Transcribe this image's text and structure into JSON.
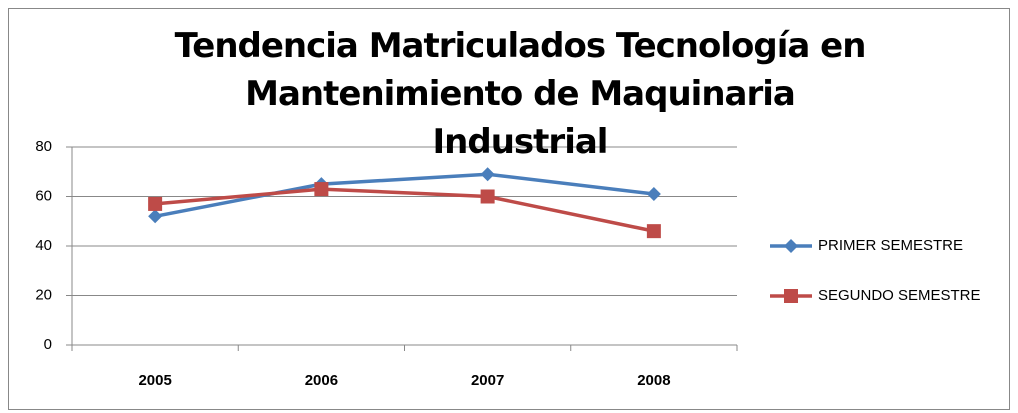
{
  "chart_data": {
    "type": "line",
    "title": "Tendencia Matriculados Tecnología en Mantenimiento de Maquinaria Industrial",
    "categories": [
      "2005",
      "2006",
      "2007",
      "2008"
    ],
    "series": [
      {
        "name": "PRIMER SEMESTRE",
        "color": "#4a7ebb",
        "marker": "diamond",
        "values": [
          52,
          65,
          69,
          61
        ]
      },
      {
        "name": "SEGUNDO SEMESTRE",
        "color": "#be4b48",
        "marker": "square",
        "values": [
          57,
          63,
          60,
          46
        ]
      }
    ],
    "ylim": [
      0,
      80
    ],
    "yticks": [
      0,
      20,
      40,
      60,
      80
    ],
    "grid": true,
    "legend": "right"
  }
}
